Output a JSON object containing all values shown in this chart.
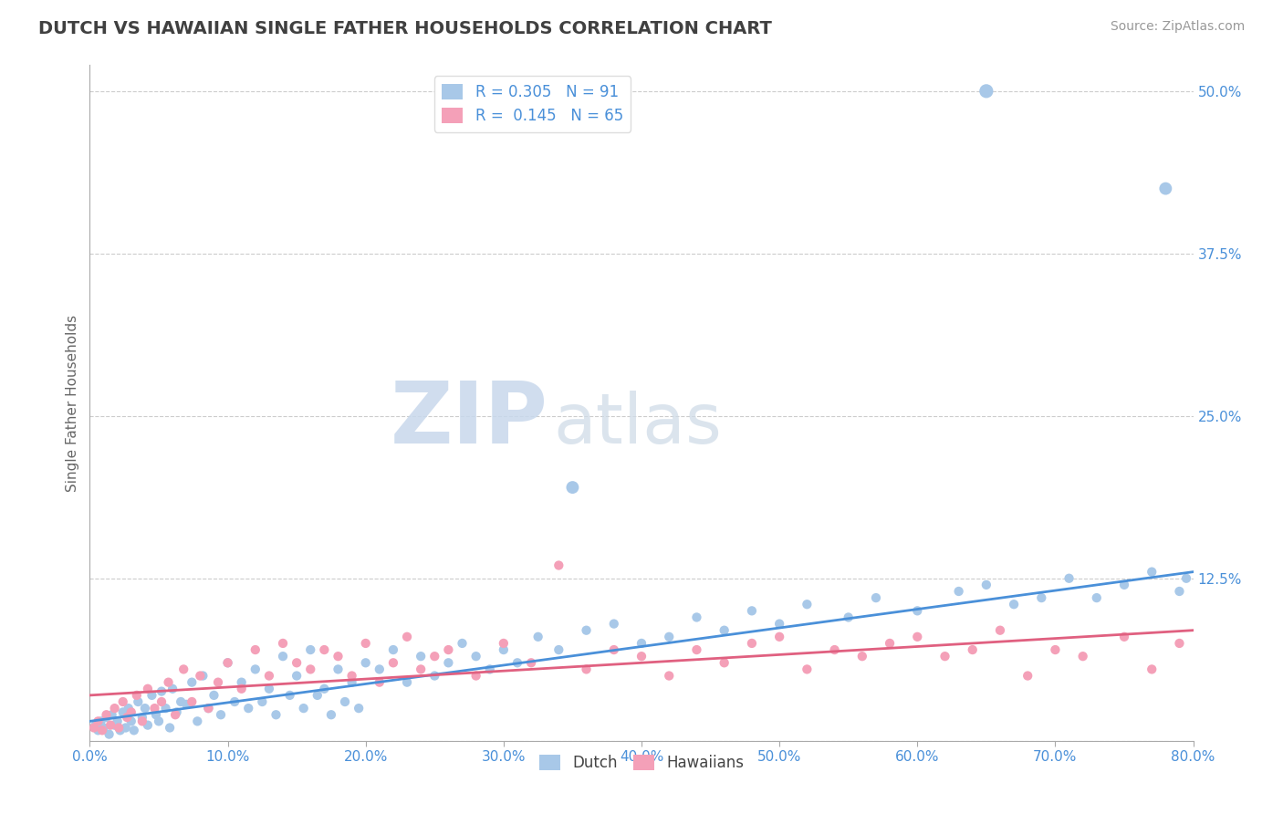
{
  "title": "DUTCH VS HAWAIIAN SINGLE FATHER HOUSEHOLDS CORRELATION CHART",
  "source": "Source: ZipAtlas.com",
  "ylabel": "Single Father Households",
  "xlim": [
    0.0,
    80.0
  ],
  "ylim": [
    0.0,
    52.0
  ],
  "xticks": [
    0.0,
    10.0,
    20.0,
    30.0,
    40.0,
    50.0,
    60.0,
    70.0,
    80.0
  ],
  "yticks": [
    0.0,
    12.5,
    25.0,
    37.5,
    50.0
  ],
  "xticklabels": [
    "0.0%",
    "10.0%",
    "20.0%",
    "30.0%",
    "40.0%",
    "50.0%",
    "60.0%",
    "70.0%",
    "80.0%"
  ],
  "yticklabels": [
    "",
    "12.5%",
    "25.0%",
    "37.5%",
    "50.0%"
  ],
  "dutch_R": 0.305,
  "dutch_N": 91,
  "hawaiian_R": 0.145,
  "hawaiian_N": 65,
  "dutch_color": "#a8c8e8",
  "hawaiian_color": "#f4a0b8",
  "dutch_line_color": "#4a90d9",
  "hawaiian_line_color": "#e06080",
  "axis_label_color": "#4a90d9",
  "title_color": "#404040",
  "grid_color": "#cccccc",
  "watermark_zip": "ZIP",
  "watermark_atlas": "atlas",
  "dutch_x": [
    0.4,
    0.6,
    0.8,
    1.0,
    1.2,
    1.4,
    1.6,
    1.8,
    2.0,
    2.2,
    2.4,
    2.6,
    2.8,
    3.0,
    3.2,
    3.5,
    3.8,
    4.0,
    4.2,
    4.5,
    4.8,
    5.0,
    5.2,
    5.5,
    5.8,
    6.0,
    6.3,
    6.6,
    7.0,
    7.4,
    7.8,
    8.2,
    8.6,
    9.0,
    9.5,
    10.0,
    10.5,
    11.0,
    11.5,
    12.0,
    12.5,
    13.0,
    13.5,
    14.0,
    14.5,
    15.0,
    15.5,
    16.0,
    16.5,
    17.0,
    17.5,
    18.0,
    18.5,
    19.0,
    19.5,
    20.0,
    21.0,
    22.0,
    23.0,
    24.0,
    25.0,
    26.0,
    27.0,
    28.0,
    29.0,
    30.0,
    31.0,
    32.5,
    34.0,
    36.0,
    38.0,
    40.0,
    42.0,
    44.0,
    46.0,
    48.0,
    50.0,
    52.0,
    55.0,
    57.0,
    60.0,
    63.0,
    65.0,
    67.0,
    69.0,
    71.0,
    73.0,
    75.0,
    77.0,
    79.0,
    79.5
  ],
  "dutch_y": [
    1.2,
    0.8,
    1.5,
    1.0,
    1.8,
    0.5,
    2.0,
    1.2,
    1.5,
    0.8,
    2.2,
    1.0,
    2.5,
    1.5,
    0.8,
    3.0,
    1.8,
    2.5,
    1.2,
    3.5,
    2.0,
    1.5,
    3.8,
    2.5,
    1.0,
    4.0,
    2.2,
    3.0,
    2.8,
    4.5,
    1.5,
    5.0,
    2.5,
    3.5,
    2.0,
    6.0,
    3.0,
    4.5,
    2.5,
    5.5,
    3.0,
    4.0,
    2.0,
    6.5,
    3.5,
    5.0,
    2.5,
    7.0,
    3.5,
    4.0,
    2.0,
    5.5,
    3.0,
    4.5,
    2.5,
    6.0,
    5.5,
    7.0,
    4.5,
    6.5,
    5.0,
    6.0,
    7.5,
    6.5,
    5.5,
    7.0,
    6.0,
    8.0,
    7.0,
    8.5,
    9.0,
    7.5,
    8.0,
    9.5,
    8.5,
    10.0,
    9.0,
    10.5,
    9.5,
    11.0,
    10.0,
    11.5,
    12.0,
    10.5,
    11.0,
    12.5,
    11.0,
    12.0,
    13.0,
    11.5,
    12.5
  ],
  "hawaiian_x": [
    0.3,
    0.6,
    0.9,
    1.2,
    1.5,
    1.8,
    2.1,
    2.4,
    2.7,
    3.0,
    3.4,
    3.8,
    4.2,
    4.7,
    5.2,
    5.7,
    6.2,
    6.8,
    7.4,
    8.0,
    8.6,
    9.3,
    10.0,
    11.0,
    12.0,
    13.0,
    14.0,
    15.0,
    16.0,
    17.0,
    18.0,
    19.0,
    20.0,
    21.0,
    22.0,
    23.0,
    24.0,
    25.0,
    26.0,
    28.0,
    30.0,
    32.0,
    34.0,
    36.0,
    38.0,
    40.0,
    42.0,
    44.0,
    46.0,
    48.0,
    50.0,
    52.0,
    54.0,
    56.0,
    58.0,
    60.0,
    62.0,
    64.0,
    66.0,
    68.0,
    70.0,
    72.0,
    75.0,
    77.0,
    79.0
  ],
  "hawaiian_y": [
    1.0,
    1.5,
    0.8,
    2.0,
    1.2,
    2.5,
    1.0,
    3.0,
    1.8,
    2.2,
    3.5,
    1.5,
    4.0,
    2.5,
    3.0,
    4.5,
    2.0,
    5.5,
    3.0,
    5.0,
    2.5,
    4.5,
    6.0,
    4.0,
    7.0,
    5.0,
    7.5,
    6.0,
    5.5,
    7.0,
    6.5,
    5.0,
    7.5,
    4.5,
    6.0,
    8.0,
    5.5,
    6.5,
    7.0,
    5.0,
    7.5,
    6.0,
    13.5,
    5.5,
    7.0,
    6.5,
    5.0,
    7.0,
    6.0,
    7.5,
    8.0,
    5.5,
    7.0,
    6.5,
    7.5,
    8.0,
    6.5,
    7.0,
    8.5,
    5.0,
    7.0,
    6.5,
    8.0,
    5.5,
    7.5
  ],
  "dutch_outlier1_x": 65.0,
  "dutch_outlier1_y": 50.0,
  "dutch_outlier2_x": 78.0,
  "dutch_outlier2_y": 42.5,
  "dutch_outlier3_x": 35.0,
  "dutch_outlier3_y": 19.5,
  "dutch_line_x0": 0.0,
  "dutch_line_y0": 1.5,
  "dutch_line_x1": 80.0,
  "dutch_line_y1": 13.0,
  "hawaiian_line_x0": 0.0,
  "hawaiian_line_y0": 3.5,
  "hawaiian_line_x1": 80.0,
  "hawaiian_line_y1": 8.5
}
